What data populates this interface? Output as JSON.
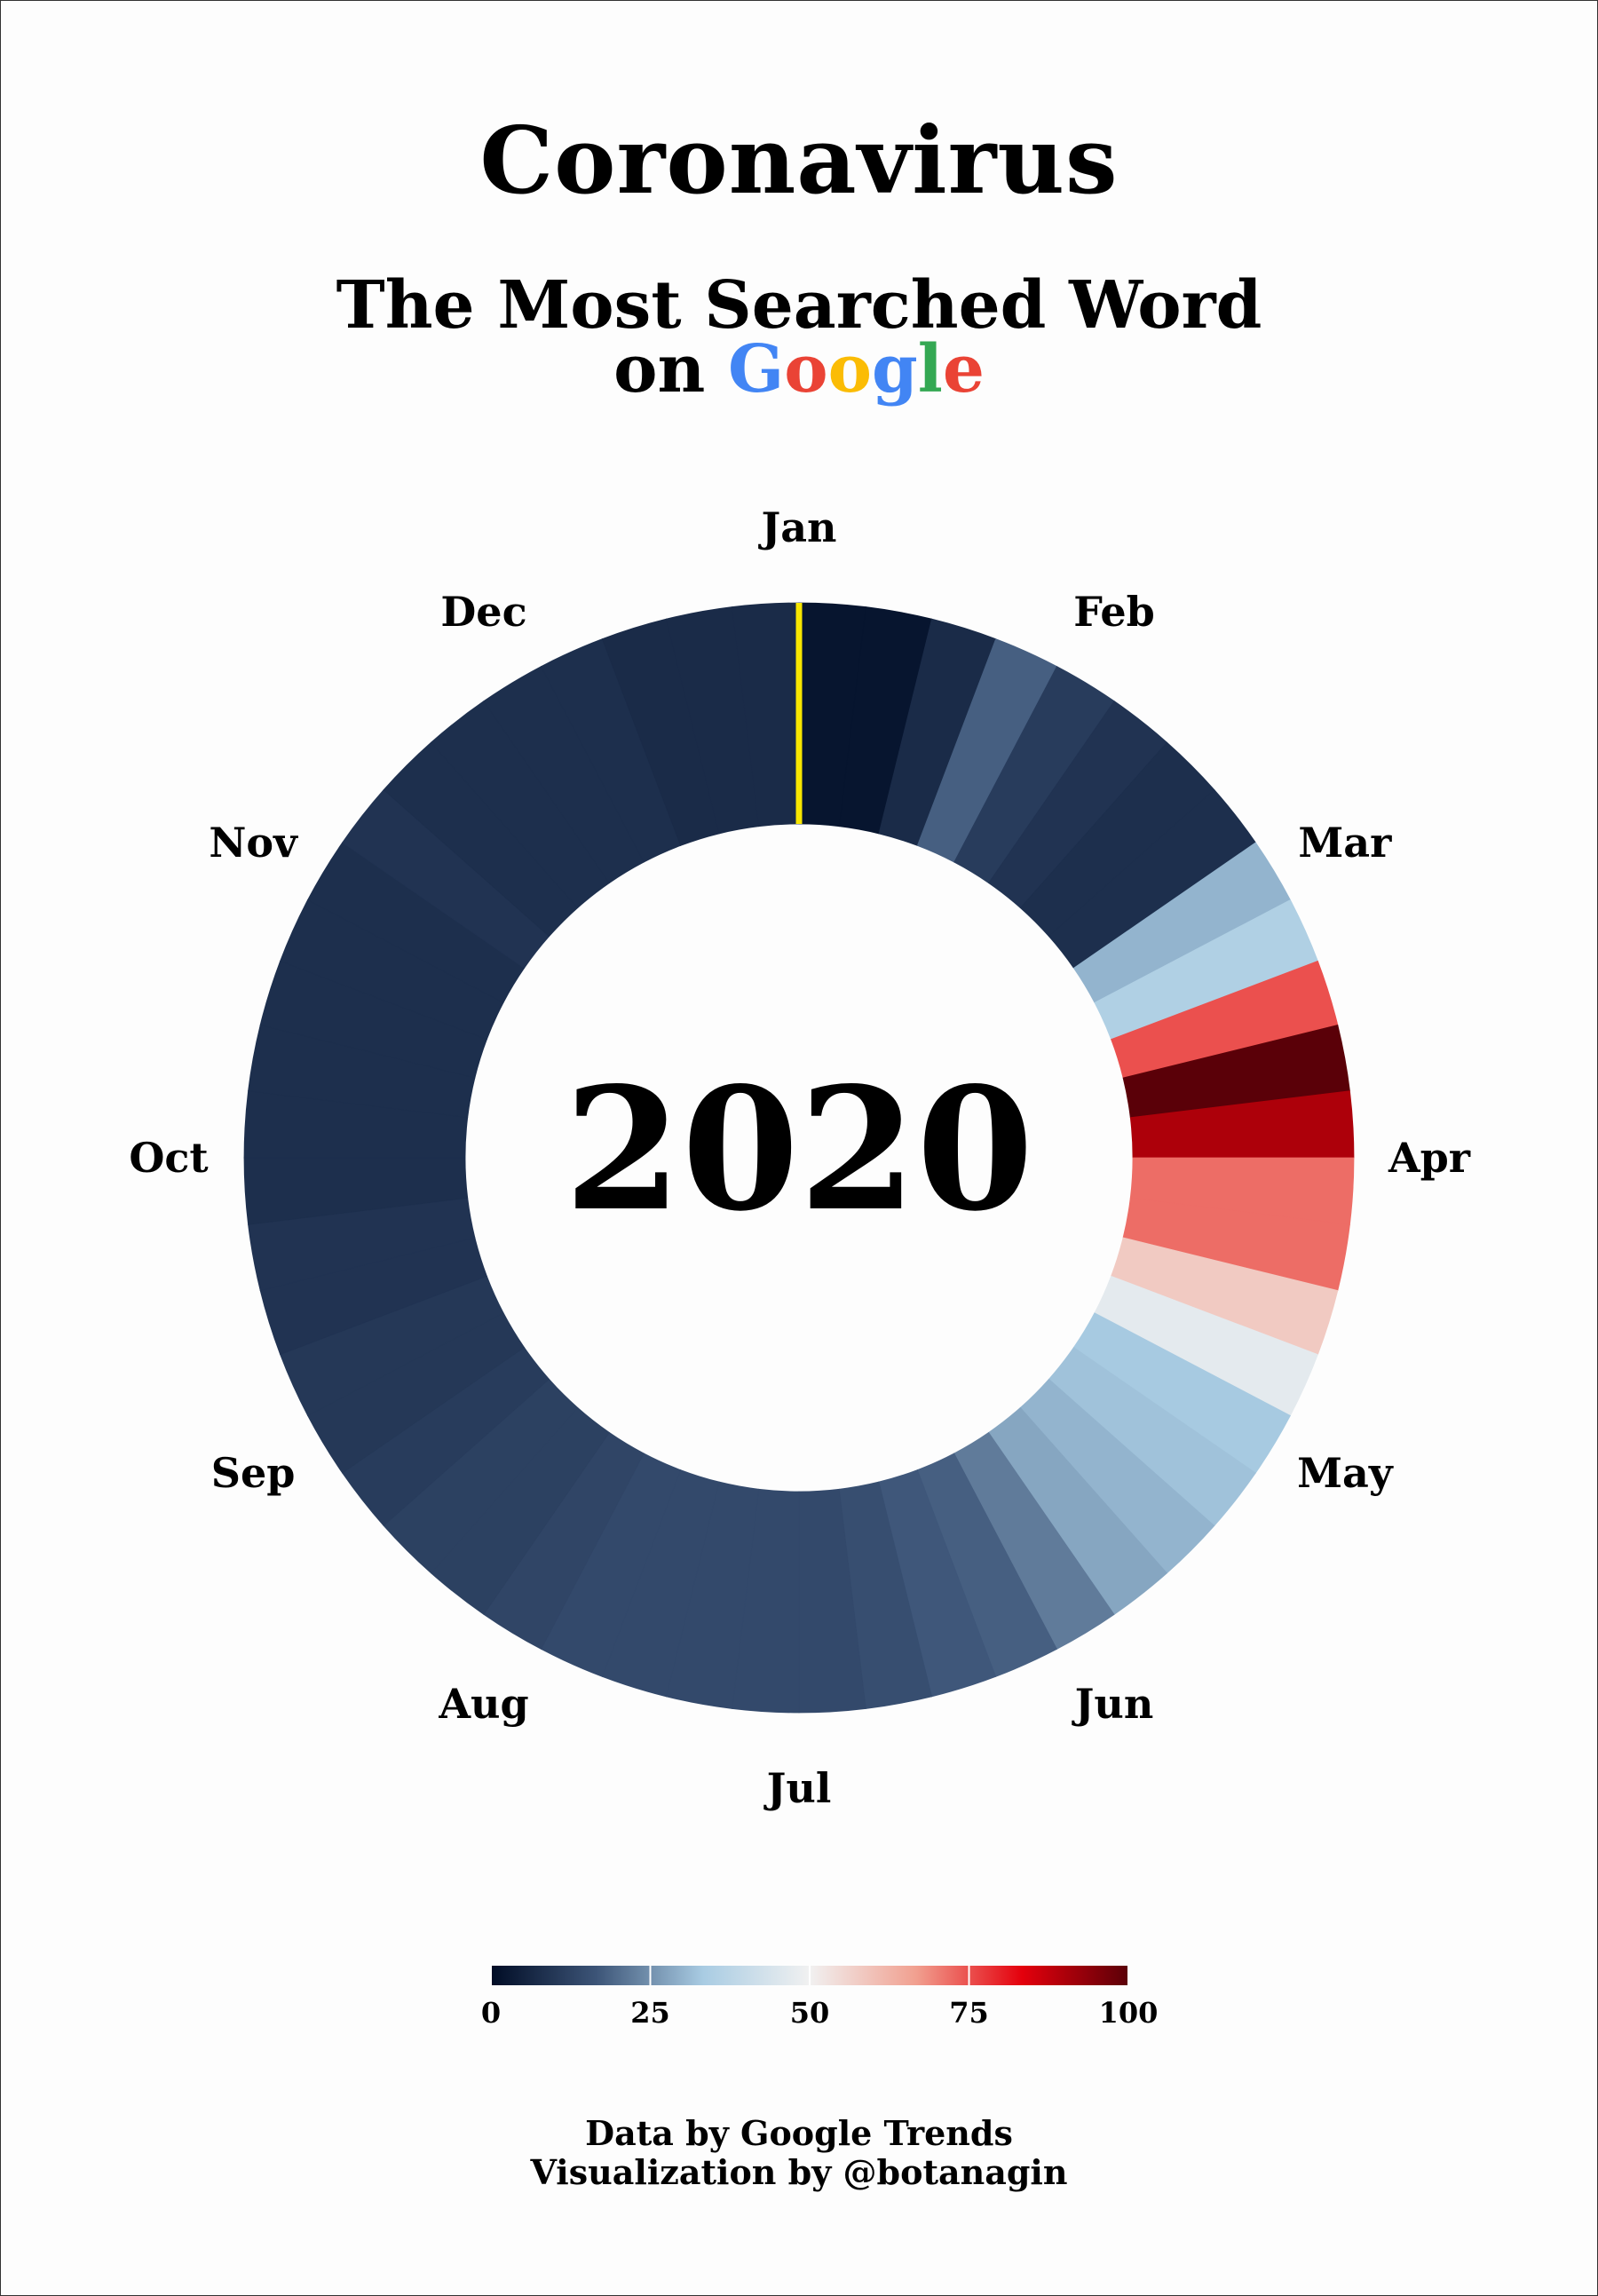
{
  "title": "Coronavirus",
  "subtitle_line1": "The Most Searched Word",
  "subtitle_on": "on ",
  "google_letters": [
    {
      "ch": "G",
      "color": "#4285F4"
    },
    {
      "ch": "o",
      "color": "#EA4335"
    },
    {
      "ch": "o",
      "color": "#FBBC05"
    },
    {
      "ch": "g",
      "color": "#4285F4"
    },
    {
      "ch": "l",
      "color": "#34A853"
    },
    {
      "ch": "e",
      "color": "#EA4335"
    }
  ],
  "credits_line1": "Data by Google Trends",
  "credits_line2": "Visualization by @botanagin",
  "chart_data": {
    "type": "radial-heatmap",
    "center_label": "2020",
    "period": "weekly",
    "months": [
      "Jan",
      "Feb",
      "Mar",
      "Apr",
      "May",
      "Jun",
      "Jul",
      "Aug",
      "Sep",
      "Oct",
      "Nov",
      "Dec"
    ],
    "values": [
      2,
      2,
      7,
      18,
      11,
      9,
      8,
      8,
      30,
      35,
      75,
      100,
      90,
      72,
      72,
      58,
      47,
      33,
      32,
      30,
      28,
      22,
      18,
      17,
      15,
      14,
      14,
      14,
      14,
      14,
      13,
      12,
      12,
      11,
      10,
      10,
      9,
      9,
      8,
      8,
      8,
      8,
      8,
      8,
      9,
      8,
      8,
      8,
      8,
      7,
      7,
      7
    ],
    "current_week_marker": {
      "week_index": 0,
      "color": "#f7e600"
    },
    "colorbar": {
      "min": 0,
      "max": 100,
      "ticks": [
        0,
        25,
        50,
        75,
        100
      ],
      "stops": [
        "#000c25",
        "#3d5578",
        "#a9cce3",
        "#f1f1f1",
        "#f1a090",
        "#e4000c",
        "#5a0008"
      ]
    }
  }
}
